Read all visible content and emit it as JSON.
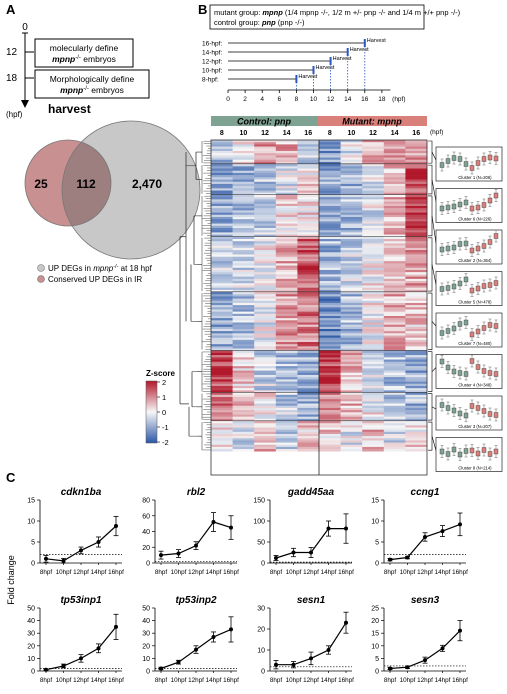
{
  "panel_labels": {
    "a": "A",
    "b": "B",
    "c": "C"
  },
  "panel_a": {
    "ticks": [
      "0",
      "12",
      "18"
    ],
    "unit": "(hpf)",
    "box1_line1": "molecularly define",
    "box1_line2": "mpnp",
    "box1_sup": "-/-",
    "box1_line2_tail": " embryos",
    "box2_line1": "Morphologically define",
    "box2_line2": "mpnp",
    "box2_sup": "-/-",
    "box2_line2_tail": " embryos",
    "harvest": "harvest",
    "venn": {
      "only_ir": "25",
      "overlap": "112",
      "only_up": "2,470"
    },
    "legend_up": "UP DEGs in",
    "legend_up_gene": "mpnp",
    "legend_up_sup": "-/-",
    "legend_up_tail": " at 18 hpf",
    "legend_ir": "Conserved UP DEGs in IR",
    "colors": {
      "up_circle": "#c8c8c8",
      "ir_circle": "#c89090",
      "overlap": "#9e7f7f"
    }
  },
  "panel_b": {
    "groups_line1_label": "mutant group: ",
    "groups_line1_gene": "mpnp",
    "groups_line1_text": " (1/4 mpnp -/-, 1/2 m +/- pnp -/- and 1/4 m +/+ pnp -/-)",
    "groups_line2_label": "control group: ",
    "groups_line2_gene": "pnp",
    "groups_line2_text": " (pnp -/-)",
    "harvest_rows": [
      {
        "label": "16-hpf:",
        "harvest": "Harvest",
        "end": 16
      },
      {
        "label": "14-hpf:",
        "harvest": "Harvest",
        "end": 14
      },
      {
        "label": "12-hpf:",
        "harvest": "Harvest",
        "end": 12
      },
      {
        "label": "10-hpf:",
        "harvest": "Harvest",
        "end": 10
      },
      {
        "label": "8-hpf:",
        "harvest": "Harvest",
        "end": 8
      }
    ],
    "axis_ticks": [
      "0",
      "2",
      "4",
      "6",
      "8",
      "10",
      "12",
      "14",
      "16",
      "18"
    ],
    "axis_unit": "(hpf)",
    "control_label": "Control: pnp",
    "mutant_label": "Mutant: mpnp",
    "heat_cols": [
      "8",
      "10",
      "12",
      "14",
      "16",
      "8",
      "10",
      "12",
      "14",
      "16"
    ],
    "heat_unit": "(hpf)",
    "zscore_title": "Z-score",
    "zscore_ticks": [
      "2",
      "1",
      "0",
      "-1",
      "-2"
    ],
    "clusters": [
      {
        "label": "Cluster 1 (N=206)"
      },
      {
        "label": "Cluster 6 (N=226)"
      },
      {
        "label": "Cluster 2 (N=364)"
      },
      {
        "label": "Cluster 5 (N=478)"
      },
      {
        "label": "Cluster 7 (N=480)"
      },
      {
        "label": "Cluster 4 (N=348)"
      },
      {
        "label": "Cluster 3 (N=207)"
      },
      {
        "label": "Cluster 8 (N=214)"
      }
    ],
    "colors": {
      "control": "#7fa393",
      "mutant": "#d9807a",
      "high": "#b2182b",
      "mid": "#f7f7f7",
      "low": "#2b57a6"
    }
  },
  "panel_c": {
    "ylabel": "Fold change",
    "xticks": [
      "8hpf",
      "10hpf",
      "12hpf",
      "14hpf",
      "16hpf"
    ],
    "chart_data": [
      {
        "type": "line",
        "title": "cdkn1ba",
        "x": [
          "8hpf",
          "10hpf",
          "12hpf",
          "14hpf",
          "16hpf"
        ],
        "y": [
          1.0,
          0.5,
          3.0,
          5.0,
          8.8
        ],
        "err": [
          0.8,
          0.6,
          0.8,
          1.2,
          2.3
        ],
        "ylim": [
          0,
          15
        ],
        "yticks": [
          0,
          5,
          10,
          15
        ],
        "baseline": 2
      },
      {
        "type": "line",
        "title": "rbl2",
        "x": [
          "8hpf",
          "10hpf",
          "12hpf",
          "14hpf",
          "16hpf"
        ],
        "y": [
          10,
          12,
          22,
          52,
          45
        ],
        "err": [
          5,
          5,
          5,
          12,
          15
        ],
        "ylim": [
          0,
          80
        ],
        "yticks": [
          0,
          20,
          40,
          60,
          80
        ],
        "baseline": 2
      },
      {
        "type": "line",
        "title": "gadd45aa",
        "x": [
          "8hpf",
          "10hpf",
          "12hpf",
          "14hpf",
          "16hpf"
        ],
        "y": [
          12,
          25,
          25,
          82,
          82
        ],
        "err": [
          6,
          10,
          12,
          18,
          35
        ],
        "ylim": [
          0,
          150
        ],
        "yticks": [
          0,
          50,
          100,
          150
        ],
        "baseline": 2
      },
      {
        "type": "line",
        "title": "ccng1",
        "x": [
          "8hpf",
          "10hpf",
          "12hpf",
          "14hpf",
          "16hpf"
        ],
        "y": [
          0.8,
          1.3,
          6.2,
          7.6,
          9.2
        ],
        "err": [
          0.3,
          0.3,
          1.0,
          1.3,
          2.7
        ],
        "ylim": [
          0,
          15
        ],
        "yticks": [
          0,
          5,
          10,
          15
        ],
        "baseline": 2
      },
      {
        "type": "line",
        "title": "tp53inp1",
        "x": [
          "8hpf",
          "10hpf",
          "12hpf",
          "14hpf",
          "16hpf"
        ],
        "y": [
          1,
          4,
          10,
          18,
          35
        ],
        "err": [
          0.5,
          1.5,
          3,
          3.5,
          10
        ],
        "ylim": [
          0,
          50
        ],
        "yticks": [
          0,
          10,
          20,
          30,
          40,
          50
        ],
        "baseline": 2
      },
      {
        "type": "line",
        "title": "tp53inp2",
        "x": [
          "8hpf",
          "10hpf",
          "12hpf",
          "14hpf",
          "16hpf"
        ],
        "y": [
          2,
          7,
          17,
          27,
          33
        ],
        "err": [
          1,
          1.5,
          3,
          4,
          10
        ],
        "ylim": [
          0,
          50
        ],
        "yticks": [
          0,
          10,
          20,
          30,
          40,
          50
        ],
        "baseline": 2
      },
      {
        "type": "line",
        "title": "sesn1",
        "x": [
          "8hpf",
          "10hpf",
          "12hpf",
          "14hpf",
          "16hpf"
        ],
        "y": [
          3,
          3,
          6,
          10,
          23
        ],
        "err": [
          2,
          1.5,
          3,
          2,
          5
        ],
        "ylim": [
          0,
          30
        ],
        "yticks": [
          0,
          10,
          20,
          30
        ],
        "baseline": 2
      },
      {
        "type": "line",
        "title": "sesn3",
        "x": [
          "8hpf",
          "10hpf",
          "12hpf",
          "14hpf",
          "16hpf"
        ],
        "y": [
          1,
          1.5,
          4.3,
          9,
          16
        ],
        "err": [
          0.4,
          0.5,
          1.2,
          1.2,
          4
        ],
        "ylim": [
          0,
          25
        ],
        "yticks": [
          0,
          5,
          10,
          15,
          20,
          25
        ],
        "baseline": 2
      }
    ]
  }
}
